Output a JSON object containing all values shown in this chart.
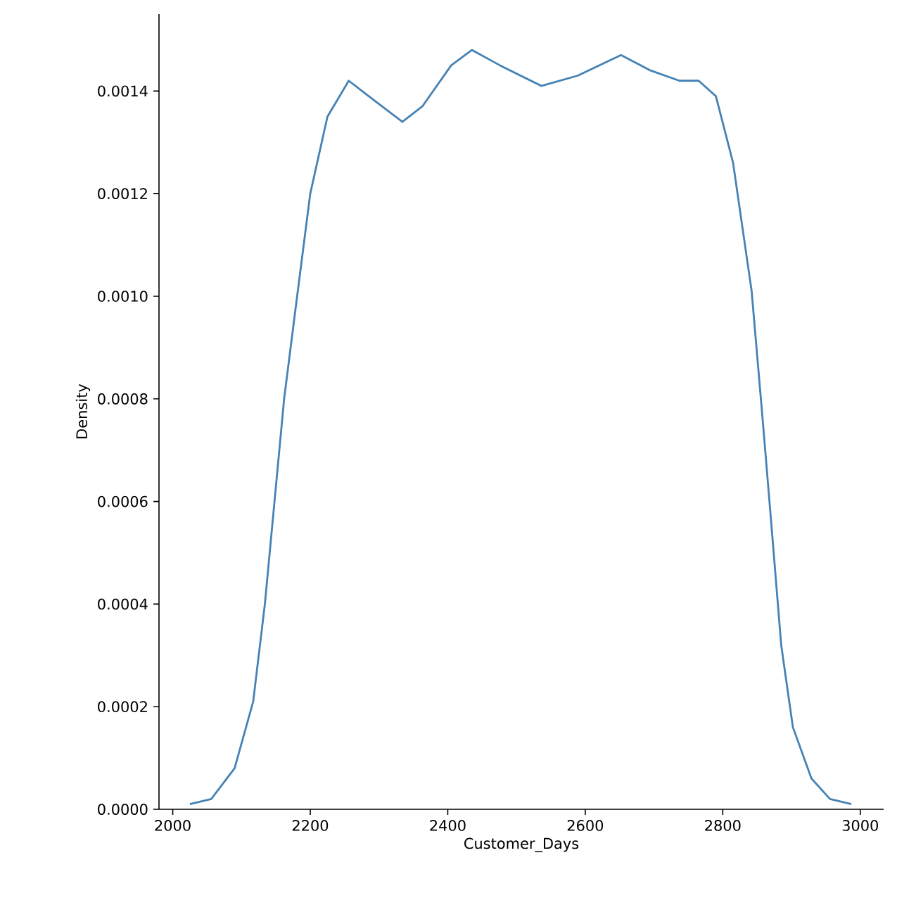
{
  "chart_data": {
    "type": "line",
    "xlabel": "Customer_Days",
    "ylabel": "Density",
    "x": [
      2025,
      2056,
      2090,
      2117,
      2134,
      2148,
      2162,
      2179,
      2200,
      2225,
      2256,
      2285,
      2334,
      2363,
      2405,
      2435,
      2476,
      2536,
      2589,
      2652,
      2695,
      2737,
      2765,
      2790,
      2815,
      2842,
      2858,
      2871,
      2885,
      2902,
      2929,
      2956,
      2987
    ],
    "series": [
      {
        "color": "#4682b4",
        "values": [
          1e-05,
          2e-05,
          8e-05,
          0.00021,
          0.0004,
          0.0006,
          0.0008,
          0.00098,
          0.0012,
          0.00135,
          0.00142,
          0.00139,
          0.00134,
          0.00137,
          0.00145,
          0.00148,
          0.00145,
          0.00141,
          0.00143,
          0.00147,
          0.00144,
          0.00142,
          0.00142,
          0.00139,
          0.00126,
          0.00101,
          0.00076,
          0.00055,
          0.00032,
          0.00016,
          6e-05,
          2e-05,
          1e-05
        ]
      }
    ],
    "xlim": [
      1980,
      3034
    ],
    "ylim": [
      0,
      0.00155
    ],
    "xticks": [
      2000,
      2200,
      2400,
      2600,
      2800,
      3000
    ],
    "yticks": [
      {
        "value": 0,
        "label": "0.0000"
      },
      0.0002,
      0.0004,
      0.0006,
      0.0008,
      {
        "value": 0.001,
        "label": "0.0010"
      },
      0.0012,
      0.0014
    ],
    "grid": false,
    "marker": "none",
    "line_style": "solid"
  }
}
